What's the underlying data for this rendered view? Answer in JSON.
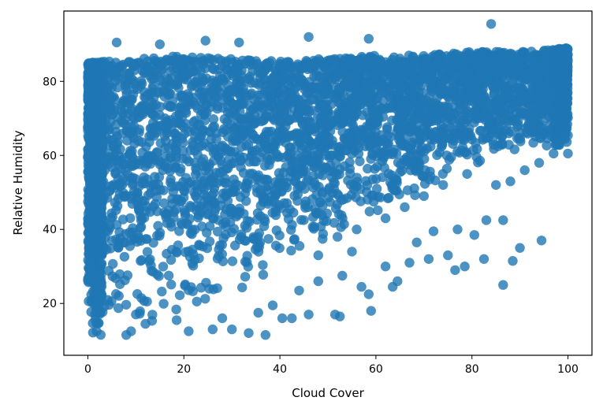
{
  "chart_data": {
    "type": "scatter",
    "title": "",
    "xlabel": "Cloud Cover",
    "ylabel": "Relative Humidity",
    "xlim": [
      -5,
      105
    ],
    "ylim": [
      6,
      99
    ],
    "xticks": [
      0,
      20,
      40,
      60,
      80,
      100
    ],
    "yticks": [
      20,
      40,
      60,
      80
    ],
    "grid": false,
    "legend": "none",
    "marker": "circle",
    "color": "#1f77b4",
    "alpha": 0.8,
    "dense_region": {
      "description_points": "lower boundary of dense point cloud",
      "lower_edge": [
        [
          0,
          10
        ],
        [
          5,
          12
        ],
        [
          10,
          14
        ],
        [
          20,
          17
        ],
        [
          30,
          22
        ],
        [
          40,
          28
        ],
        [
          50,
          36
        ],
        [
          60,
          44
        ],
        [
          70,
          50
        ],
        [
          80,
          56
        ],
        [
          90,
          60
        ],
        [
          100,
          62
        ]
      ],
      "upper_edge": [
        [
          0,
          85
        ],
        [
          10,
          86
        ],
        [
          20,
          87
        ],
        [
          30,
          86
        ],
        [
          40,
          86
        ],
        [
          50,
          86
        ],
        [
          60,
          87
        ],
        [
          70,
          87
        ],
        [
          80,
          88
        ],
        [
          90,
          88
        ],
        [
          100,
          89
        ]
      ]
    },
    "outliers": [
      [
        6,
        90.5
      ],
      [
        15,
        90
      ],
      [
        24.5,
        91
      ],
      [
        31.5,
        90.5
      ],
      [
        46,
        92
      ],
      [
        58.5,
        91.5
      ],
      [
        84,
        95.5
      ],
      [
        21,
        12.5
      ],
      [
        26,
        13
      ],
      [
        30,
        13
      ],
      [
        33.5,
        12
      ],
      [
        37,
        11.5
      ],
      [
        40.5,
        16
      ],
      [
        42.5,
        16
      ],
      [
        46,
        17
      ],
      [
        51.5,
        17
      ],
      [
        52.5,
        16.5
      ],
      [
        59,
        18
      ],
      [
        58.5,
        22.5
      ],
      [
        57,
        24.5
      ],
      [
        63.5,
        24.5
      ],
      [
        64.5,
        26
      ],
      [
        62,
        30
      ],
      [
        67,
        31
      ],
      [
        71,
        32
      ],
      [
        76.5,
        29
      ],
      [
        78.5,
        30
      ],
      [
        86.5,
        25
      ],
      [
        88.5,
        31.5
      ],
      [
        90,
        35
      ],
      [
        94.5,
        37
      ],
      [
        82.5,
        32
      ],
      [
        80.5,
        38.5
      ],
      [
        83,
        42.5
      ],
      [
        86.5,
        42.5
      ],
      [
        77,
        40
      ],
      [
        75,
        33
      ],
      [
        68.5,
        36.5
      ],
      [
        72,
        39.5
      ],
      [
        55,
        34
      ],
      [
        53,
        27.5
      ],
      [
        48,
        26
      ],
      [
        44,
        23.5
      ],
      [
        38.5,
        19.5
      ],
      [
        35.5,
        17.5
      ],
      [
        28,
        16
      ],
      [
        18.5,
        15.5
      ],
      [
        12,
        14.5
      ],
      [
        9,
        12.5
      ],
      [
        8,
        11.5
      ],
      [
        97,
        60.5
      ],
      [
        100,
        60.5
      ],
      [
        94,
        58
      ],
      [
        91,
        56
      ],
      [
        88,
        53
      ],
      [
        85,
        52
      ],
      [
        79,
        55
      ],
      [
        74,
        52
      ],
      [
        70,
        49
      ],
      [
        66,
        46
      ],
      [
        62,
        43
      ],
      [
        56,
        40
      ],
      [
        52,
        38
      ],
      [
        48,
        33
      ]
    ]
  }
}
